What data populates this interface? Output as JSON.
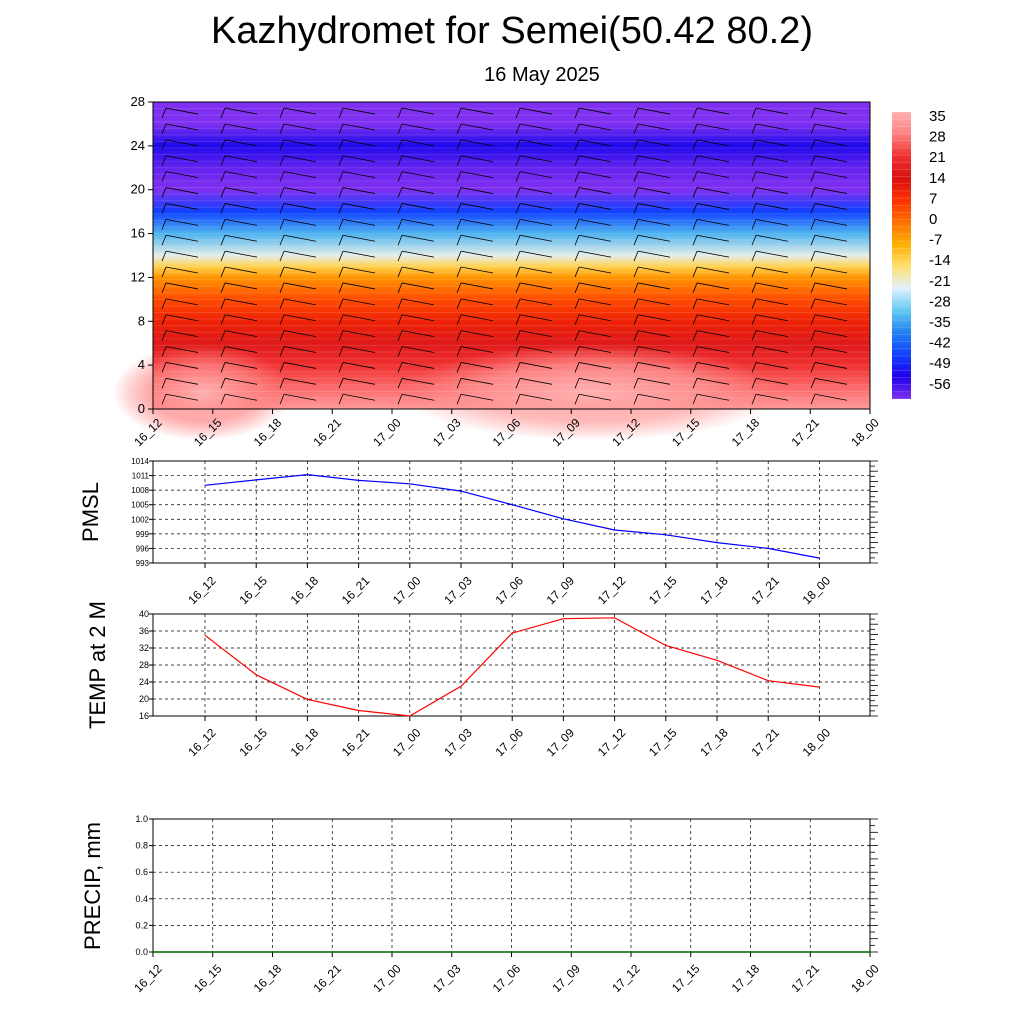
{
  "header": {
    "title": "Kazhydromet for Semei(50.42 80.2)",
    "subtitle": "16 May 2025"
  },
  "chart_data": [
    {
      "type": "heatmap",
      "name": "vertical-section",
      "x_ticks": [
        "16_12",
        "16_15",
        "16_18",
        "16_21",
        "17_00",
        "17_03",
        "17_06",
        "17_09",
        "17_12",
        "17_15",
        "17_18",
        "17_21",
        "18_00"
      ],
      "ylim": [
        0,
        28
      ],
      "y_ticks": [
        "0",
        "4",
        "8",
        "12",
        "16",
        "20",
        "24",
        "28"
      ],
      "colorbar": {
        "labels": [
          "35",
          "28",
          "21",
          "14",
          "7",
          "0",
          "-7",
          "-14",
          "-21",
          "-28",
          "-35",
          "-42",
          "-49",
          "-56"
        ],
        "colors": [
          "#ffb0b0",
          "#ff8080",
          "#f03030",
          "#d81010",
          "#ff3000",
          "#ff7000",
          "#ffb000",
          "#ffe070",
          "#e0f0ff",
          "#60c8f0",
          "#2080f0",
          "#1040ff",
          "#2000e8",
          "#8030f0"
        ]
      },
      "levels_temperature": [
        {
          "y": 0,
          "t": 32
        },
        {
          "y": 2,
          "t": 26
        },
        {
          "y": 4,
          "t": 21
        },
        {
          "y": 6,
          "t": 16
        },
        {
          "y": 8,
          "t": 10
        },
        {
          "y": 10,
          "t": 4
        },
        {
          "y": 12,
          "t": -4
        },
        {
          "y": 13,
          "t": -12
        },
        {
          "y": 14,
          "t": -20
        },
        {
          "y": 16,
          "t": -30
        },
        {
          "y": 18,
          "t": -42
        },
        {
          "y": 20,
          "t": -56
        },
        {
          "y": 22,
          "t": -54
        },
        {
          "y": 24,
          "t": -48
        },
        {
          "y": 26,
          "t": -60
        },
        {
          "y": 28,
          "t": -60
        }
      ],
      "warm_spots": [
        {
          "x": "16_15",
          "y": 1.5,
          "t": 35
        },
        {
          "x": "17_09",
          "y": 1.5,
          "t": 38
        }
      ]
    },
    {
      "type": "line",
      "name": "pmsl",
      "ylabel": "PMSL",
      "ylim": [
        993,
        1014
      ],
      "y_ticks": [
        "1014",
        "1011",
        "1008",
        "1005",
        "1002",
        "999",
        "996",
        "993"
      ],
      "x": [
        "16_12",
        "16_15",
        "16_18",
        "16_21",
        "17_00",
        "17_03",
        "17_06",
        "17_09",
        "17_12",
        "17_15",
        "17_18",
        "17_21",
        "18_00"
      ],
      "values": [
        1009.0,
        1010.1,
        1011.2,
        1010.0,
        1009.3,
        1007.8,
        1005.0,
        1002.1,
        999.8,
        998.8,
        997.2,
        996.0,
        994.0
      ],
      "color": "#0000ff"
    },
    {
      "type": "line",
      "name": "temp2m",
      "ylabel": "TEMP at 2 M",
      "ylim": [
        16,
        40
      ],
      "y_ticks": [
        "40",
        "36",
        "32",
        "28",
        "24",
        "20",
        "16"
      ],
      "x": [
        "16_12",
        "16_15",
        "16_18",
        "16_21",
        "17_00",
        "17_03",
        "17_06",
        "17_09",
        "17_12",
        "17_15",
        "17_18",
        "17_21",
        "18_00"
      ],
      "values": [
        35.0,
        25.7,
        19.9,
        17.3,
        16.0,
        23.0,
        35.5,
        38.9,
        39.1,
        32.6,
        29.1,
        24.3,
        22.8
      ],
      "color": "#ff0000"
    },
    {
      "type": "line",
      "name": "precip",
      "ylabel": "PRECIP, mm",
      "ylim": [
        0,
        1
      ],
      "y_ticks": [
        "1.0",
        "0.8",
        "0.6",
        "0.4",
        "0.2",
        "0.0"
      ],
      "x": [
        "16_12",
        "16_15",
        "16_18",
        "16_21",
        "17_00",
        "17_03",
        "17_06",
        "17_09",
        "17_12",
        "17_15",
        "17_18",
        "17_21",
        "18_00"
      ],
      "values": [
        0,
        0,
        0,
        0,
        0,
        0,
        0,
        0,
        0,
        0,
        0,
        0,
        0
      ],
      "color": "#006400"
    }
  ]
}
